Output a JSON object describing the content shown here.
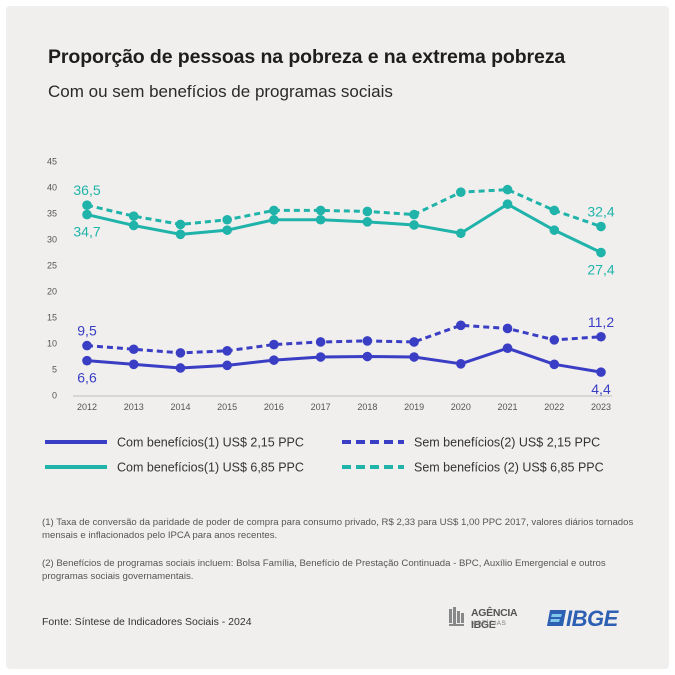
{
  "header": {
    "title": "Proporção de pessoas na pobreza e na extrema pobreza",
    "subtitle": "Com ou sem benefícios de programas sociais"
  },
  "chart_data": {
    "type": "line",
    "title": "Proporção de pessoas na pobreza e na extrema pobreza",
    "subtitle": "Com ou sem benefícios de programas sociais",
    "x": [
      "2012",
      "2013",
      "2014",
      "2015",
      "2016",
      "2017",
      "2018",
      "2019",
      "2020",
      "2021",
      "2022",
      "2023"
    ],
    "ylim": [
      0,
      45
    ],
    "yticks": [
      0,
      5,
      10,
      15,
      20,
      25,
      30,
      35,
      40,
      45
    ],
    "grid": false,
    "legend_position": "bottom",
    "series": [
      {
        "name": "Com benefícios(1)  US$ 2,15 PPC",
        "color": "#3a3ec4",
        "dashed": false,
        "values": [
          6.6,
          5.9,
          5.2,
          5.7,
          6.7,
          7.3,
          7.4,
          7.3,
          6.0,
          9.0,
          5.9,
          4.4
        ]
      },
      {
        "name": "Sem benefícios(2) US$ 2,15 PPC",
        "color": "#3a3ec4",
        "dashed": true,
        "values": [
          9.5,
          8.8,
          8.1,
          8.5,
          9.7,
          10.2,
          10.4,
          10.2,
          13.4,
          12.8,
          10.6,
          11.2
        ]
      },
      {
        "name": "Com benefícios(1) US$ 6,85 PPC",
        "color": "#1fb3aa",
        "dashed": false,
        "values": [
          34.7,
          32.6,
          30.9,
          31.7,
          33.7,
          33.7,
          33.3,
          32.7,
          31.1,
          36.7,
          31.7,
          27.4
        ]
      },
      {
        "name": "Sem benefícios (2) US$ 6,85 PPC",
        "color": "#1fb3aa",
        "dashed": true,
        "values": [
          36.5,
          34.4,
          32.8,
          33.7,
          35.5,
          35.5,
          35.3,
          34.7,
          39.0,
          39.5,
          35.5,
          32.4
        ]
      }
    ],
    "annotations": [
      {
        "series": 0,
        "index": 0,
        "text": "6,6",
        "pos": "below"
      },
      {
        "series": 0,
        "index": 11,
        "text": "4,4",
        "pos": "below"
      },
      {
        "series": 1,
        "index": 0,
        "text": "9,5",
        "pos": "above"
      },
      {
        "series": 1,
        "index": 11,
        "text": "11,2",
        "pos": "above"
      },
      {
        "series": 2,
        "index": 0,
        "text": "34,7",
        "pos": "below"
      },
      {
        "series": 2,
        "index": 11,
        "text": "27,4",
        "pos": "below"
      },
      {
        "series": 3,
        "index": 0,
        "text": "36,5",
        "pos": "above"
      },
      {
        "series": 3,
        "index": 11,
        "text": "32,4",
        "pos": "above"
      }
    ]
  },
  "footnotes": {
    "note1": "(1) Taxa de conversão da paridade de poder de compra para consumo privado, R$ 2,33 para US$ 1,00 PPC 2017, valores diários tornados mensais e inflacionados pelo IPCA para anos recentes.",
    "note2": "(2) Benefícios de programas sociais incluem: Bolsa Família, Benefício de Prestação Continuada - BPC, Auxílio Emergencial e outros programas sociais governamentais."
  },
  "source": "Fonte: Síntese de Indicadores Sociais - 2024",
  "logos": {
    "agencia_line1": "AGÊNCIA IBGE",
    "agencia_line2": "NOTÍCIAS",
    "ibge": "IBGE",
    "agencia_icon": "agencia-ibge-logo-icon",
    "ibge_icon": "ibge-flag-logo-icon"
  }
}
